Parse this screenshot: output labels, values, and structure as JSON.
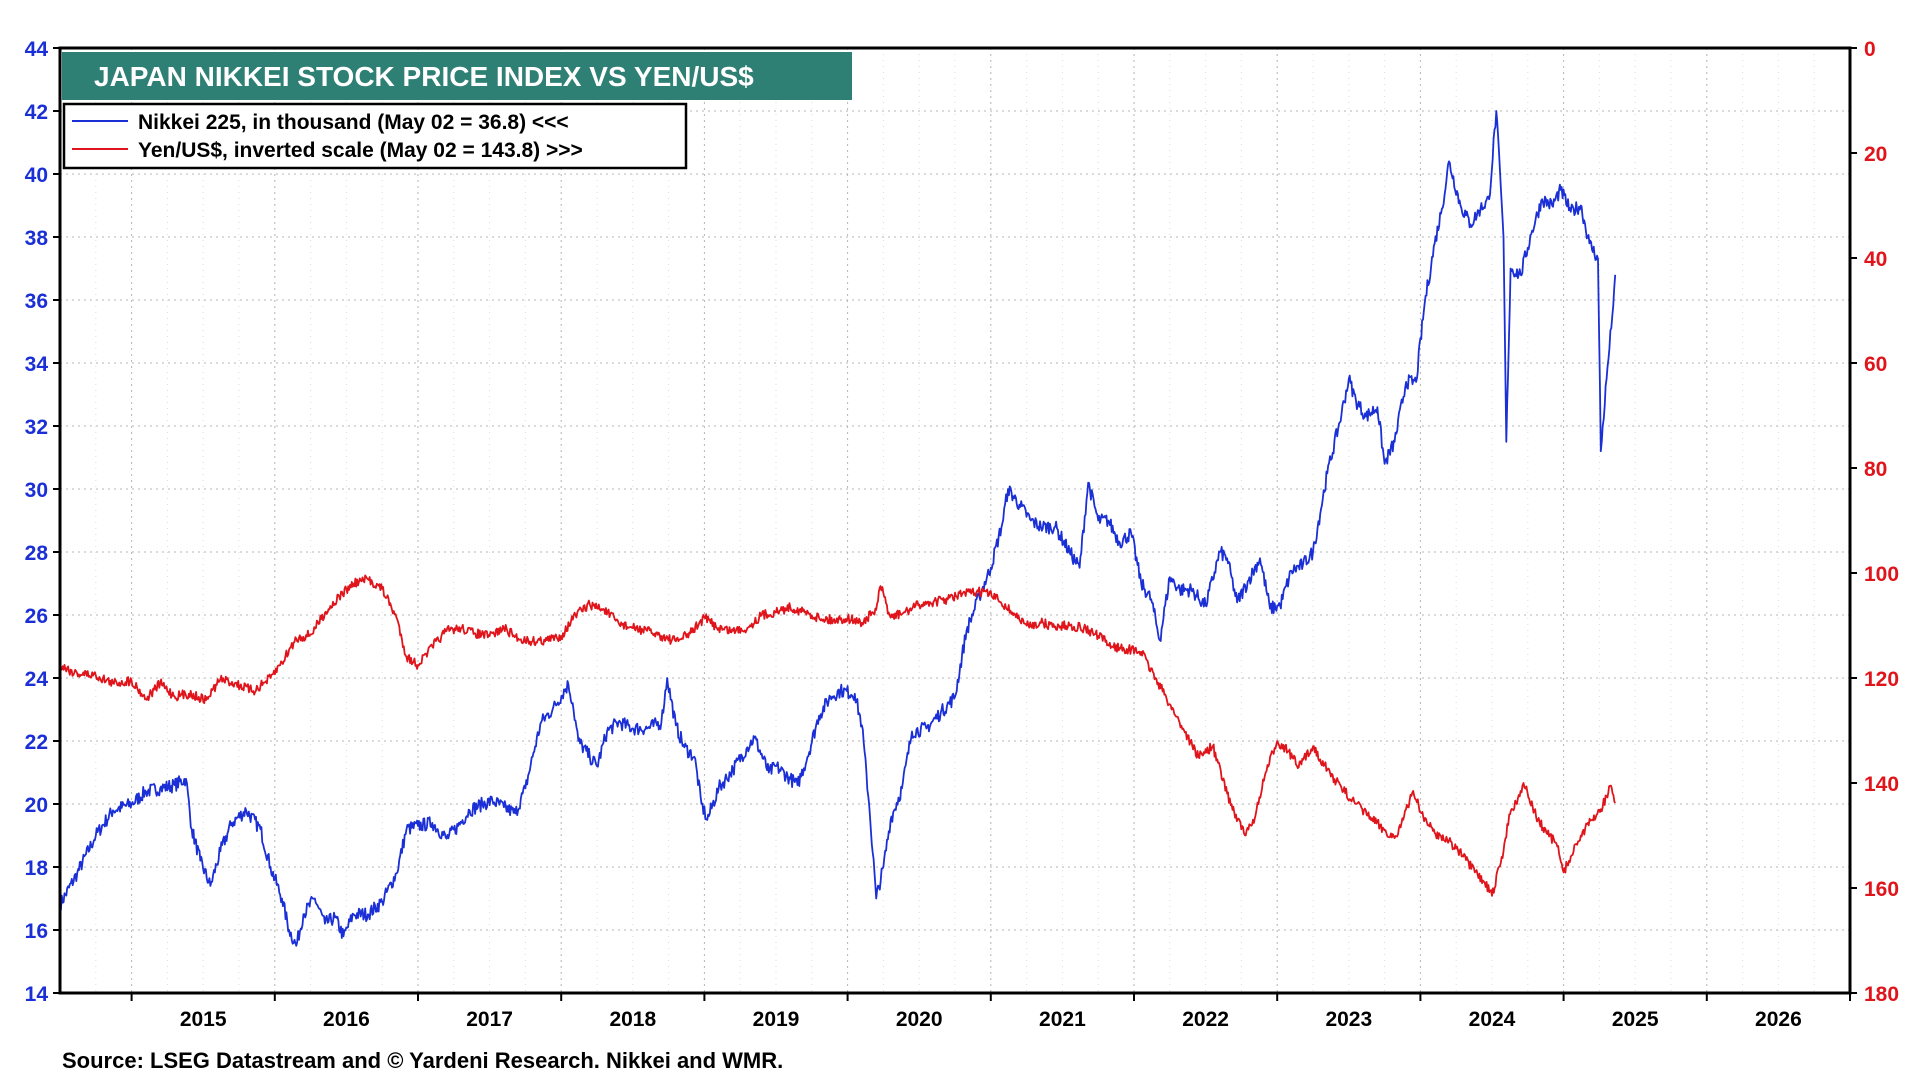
{
  "chart_data": {
    "type": "line",
    "title": "JAPAN NIKKEI STOCK PRICE INDEX VS YEN/US$",
    "source": "Source: LSEG Datastream and © Yardeni Research. Nikkei and WMR.",
    "xlim": [
      2014.5,
      2027.0
    ],
    "x_tick_labels": [
      "2015",
      "2016",
      "2017",
      "2018",
      "2019",
      "2020",
      "2021",
      "2022",
      "2023",
      "2024",
      "2025",
      "2026"
    ],
    "y_left": {
      "min": 14,
      "max": 44,
      "ticks": [
        "14",
        "16",
        "18",
        "20",
        "22",
        "24",
        "26",
        "28",
        "30",
        "32",
        "34",
        "36",
        "38",
        "40",
        "42",
        "44"
      ],
      "color": "#1a2fd6"
    },
    "y_right": {
      "min": 0,
      "max": 180,
      "inverted": true,
      "ticks": [
        "0",
        "20",
        "40",
        "60",
        "80",
        "100",
        "120",
        "140",
        "160",
        "180"
      ],
      "color": "#e0141b"
    },
    "grid": true,
    "legend_position": "top-left",
    "series": [
      {
        "name": "Nikkei 225, in thousand (May 02 = 36.8) <<<",
        "axis": "left",
        "color": "#1a2fd6",
        "points": [
          [
            2014.5,
            16.8
          ],
          [
            2014.62,
            17.8
          ],
          [
            2014.75,
            19.0
          ],
          [
            2014.87,
            19.8
          ],
          [
            2015.0,
            20.0
          ],
          [
            2015.1,
            20.4
          ],
          [
            2015.2,
            20.5
          ],
          [
            2015.3,
            20.6
          ],
          [
            2015.38,
            20.8
          ],
          [
            2015.42,
            19.2
          ],
          [
            2015.48,
            18.2
          ],
          [
            2015.55,
            17.4
          ],
          [
            2015.62,
            18.5
          ],
          [
            2015.7,
            19.4
          ],
          [
            2015.8,
            19.8
          ],
          [
            2015.9,
            19.2
          ],
          [
            2015.97,
            18.0
          ],
          [
            2016.05,
            17.0
          ],
          [
            2016.1,
            16.0
          ],
          [
            2016.15,
            15.5
          ],
          [
            2016.2,
            16.5
          ],
          [
            2016.28,
            17.0
          ],
          [
            2016.35,
            16.2
          ],
          [
            2016.42,
            16.4
          ],
          [
            2016.48,
            15.8
          ],
          [
            2016.55,
            16.5
          ],
          [
            2016.65,
            16.5
          ],
          [
            2016.75,
            16.9
          ],
          [
            2016.85,
            17.8
          ],
          [
            2016.92,
            19.2
          ],
          [
            2017.0,
            19.3
          ],
          [
            2017.1,
            19.4
          ],
          [
            2017.2,
            18.9
          ],
          [
            2017.28,
            19.3
          ],
          [
            2017.36,
            19.8
          ],
          [
            2017.45,
            20.0
          ],
          [
            2017.52,
            20.1
          ],
          [
            2017.6,
            19.9
          ],
          [
            2017.68,
            19.7
          ],
          [
            2017.75,
            20.5
          ],
          [
            2017.8,
            21.5
          ],
          [
            2017.86,
            22.6
          ],
          [
            2017.94,
            23.0
          ],
          [
            2018.05,
            23.8
          ],
          [
            2018.08,
            23.2
          ],
          [
            2018.12,
            22.0
          ],
          [
            2018.2,
            21.5
          ],
          [
            2018.25,
            21.2
          ],
          [
            2018.32,
            22.3
          ],
          [
            2018.4,
            22.6
          ],
          [
            2018.5,
            22.4
          ],
          [
            2018.6,
            22.4
          ],
          [
            2018.7,
            22.6
          ],
          [
            2018.74,
            24.0
          ],
          [
            2018.8,
            22.5
          ],
          [
            2018.86,
            21.8
          ],
          [
            2018.93,
            21.5
          ],
          [
            2018.98,
            20.0
          ],
          [
            2019.02,
            19.5
          ],
          [
            2019.1,
            20.5
          ],
          [
            2019.2,
            21.1
          ],
          [
            2019.3,
            21.8
          ],
          [
            2019.35,
            22.1
          ],
          [
            2019.45,
            21.0
          ],
          [
            2019.5,
            21.2
          ],
          [
            2019.6,
            20.8
          ],
          [
            2019.65,
            20.6
          ],
          [
            2019.72,
            21.5
          ],
          [
            2019.8,
            22.8
          ],
          [
            2019.88,
            23.4
          ],
          [
            2019.95,
            23.6
          ],
          [
            2020.05,
            23.5
          ],
          [
            2020.1,
            22.5
          ],
          [
            2020.15,
            20.0
          ],
          [
            2020.2,
            17.0
          ],
          [
            2020.25,
            18.0
          ],
          [
            2020.3,
            19.5
          ],
          [
            2020.38,
            20.5
          ],
          [
            2020.45,
            22.3
          ],
          [
            2020.55,
            22.4
          ],
          [
            2020.65,
            22.9
          ],
          [
            2020.75,
            23.4
          ],
          [
            2020.83,
            25.5
          ],
          [
            2020.92,
            26.6
          ],
          [
            2021.0,
            27.5
          ],
          [
            2021.08,
            28.9
          ],
          [
            2021.12,
            30.0
          ],
          [
            2021.2,
            29.5
          ],
          [
            2021.28,
            29.0
          ],
          [
            2021.35,
            28.8
          ],
          [
            2021.45,
            28.8
          ],
          [
            2021.55,
            28.0
          ],
          [
            2021.62,
            27.5
          ],
          [
            2021.68,
            30.2
          ],
          [
            2021.75,
            29.0
          ],
          [
            2021.82,
            29.0
          ],
          [
            2021.9,
            28.3
          ],
          [
            2021.98,
            28.6
          ],
          [
            2022.05,
            27.0
          ],
          [
            2022.12,
            26.5
          ],
          [
            2022.18,
            25.2
          ],
          [
            2022.25,
            27.2
          ],
          [
            2022.32,
            26.8
          ],
          [
            2022.4,
            26.8
          ],
          [
            2022.5,
            26.3
          ],
          [
            2022.6,
            28.0
          ],
          [
            2022.65,
            27.8
          ],
          [
            2022.72,
            26.4
          ],
          [
            2022.8,
            27.1
          ],
          [
            2022.88,
            27.8
          ],
          [
            2022.95,
            26.2
          ],
          [
            2023.02,
            26.3
          ],
          [
            2023.1,
            27.4
          ],
          [
            2023.18,
            27.6
          ],
          [
            2023.25,
            28.0
          ],
          [
            2023.35,
            30.5
          ],
          [
            2023.45,
            32.4
          ],
          [
            2023.5,
            33.5
          ],
          [
            2023.55,
            32.8
          ],
          [
            2023.62,
            32.3
          ],
          [
            2023.7,
            32.6
          ],
          [
            2023.75,
            30.8
          ],
          [
            2023.82,
            31.5
          ],
          [
            2023.9,
            33.4
          ],
          [
            2023.97,
            33.4
          ],
          [
            2024.03,
            35.9
          ],
          [
            2024.1,
            37.8
          ],
          [
            2024.15,
            38.9
          ],
          [
            2024.2,
            40.4
          ],
          [
            2024.28,
            39.0
          ],
          [
            2024.35,
            38.4
          ],
          [
            2024.42,
            38.9
          ],
          [
            2024.48,
            39.2
          ],
          [
            2024.53,
            42.0
          ],
          [
            2024.58,
            38.0
          ],
          [
            2024.6,
            31.5
          ],
          [
            2024.63,
            37.0
          ],
          [
            2024.7,
            36.8
          ],
          [
            2024.78,
            38.2
          ],
          [
            2024.85,
            39.2
          ],
          [
            2024.92,
            39.0
          ],
          [
            2024.98,
            39.5
          ],
          [
            2025.05,
            38.8
          ],
          [
            2025.12,
            39.0
          ],
          [
            2025.18,
            37.8
          ],
          [
            2025.24,
            37.3
          ],
          [
            2025.26,
            31.2
          ],
          [
            2025.3,
            33.5
          ],
          [
            2025.34,
            35.5
          ],
          [
            2025.36,
            36.8
          ]
        ]
      },
      {
        "name": "Yen/US$, inverted scale (May 02 = 143.8) >>>",
        "axis": "right",
        "color": "#e0141b",
        "points": [
          [
            2014.5,
            117.5
          ],
          [
            2014.6,
            119.0
          ],
          [
            2014.75,
            119.5
          ],
          [
            2014.87,
            121.0
          ],
          [
            2015.0,
            120.5
          ],
          [
            2015.1,
            124.0
          ],
          [
            2015.2,
            121.0
          ],
          [
            2015.3,
            123.5
          ],
          [
            2015.4,
            123.0
          ],
          [
            2015.52,
            124.2
          ],
          [
            2015.62,
            120.2
          ],
          [
            2015.72,
            121.0
          ],
          [
            2015.85,
            122.5
          ],
          [
            2015.97,
            120.0
          ],
          [
            2016.05,
            117.0
          ],
          [
            2016.15,
            112.5
          ],
          [
            2016.25,
            111.7
          ],
          [
            2016.35,
            107.6
          ],
          [
            2016.45,
            104.5
          ],
          [
            2016.55,
            102.0
          ],
          [
            2016.65,
            101.2
          ],
          [
            2016.75,
            103.0
          ],
          [
            2016.85,
            108.5
          ],
          [
            2016.92,
            116.0
          ],
          [
            2017.0,
            117.5
          ],
          [
            2017.1,
            114.0
          ],
          [
            2017.2,
            111.0
          ],
          [
            2017.3,
            110.5
          ],
          [
            2017.4,
            111.5
          ],
          [
            2017.5,
            112.0
          ],
          [
            2017.6,
            110.5
          ],
          [
            2017.7,
            112.5
          ],
          [
            2017.8,
            113.0
          ],
          [
            2017.9,
            112.8
          ],
          [
            2018.0,
            112.0
          ],
          [
            2018.1,
            108.0
          ],
          [
            2018.2,
            106.0
          ],
          [
            2018.3,
            107.0
          ],
          [
            2018.4,
            109.5
          ],
          [
            2018.5,
            110.5
          ],
          [
            2018.6,
            111.0
          ],
          [
            2018.7,
            112.0
          ],
          [
            2018.8,
            113.0
          ],
          [
            2018.9,
            111.5
          ],
          [
            2019.0,
            108.5
          ],
          [
            2019.1,
            110.5
          ],
          [
            2019.2,
            111.0
          ],
          [
            2019.3,
            110.5
          ],
          [
            2019.4,
            108.0
          ],
          [
            2019.5,
            107.5
          ],
          [
            2019.6,
            106.5
          ],
          [
            2019.7,
            107.5
          ],
          [
            2019.8,
            108.5
          ],
          [
            2019.9,
            109.0
          ],
          [
            2020.0,
            108.6
          ],
          [
            2020.1,
            109.5
          ],
          [
            2020.2,
            107.0
          ],
          [
            2020.23,
            102.5
          ],
          [
            2020.3,
            108.5
          ],
          [
            2020.4,
            107.5
          ],
          [
            2020.5,
            106.0
          ],
          [
            2020.6,
            105.5
          ],
          [
            2020.7,
            105.0
          ],
          [
            2020.8,
            104.0
          ],
          [
            2020.95,
            103.5
          ],
          [
            2021.05,
            105.0
          ],
          [
            2021.15,
            107.5
          ],
          [
            2021.25,
            110.0
          ],
          [
            2021.35,
            109.5
          ],
          [
            2021.45,
            110.2
          ],
          [
            2021.55,
            110.0
          ],
          [
            2021.65,
            110.5
          ],
          [
            2021.75,
            112.0
          ],
          [
            2021.85,
            114.0
          ],
          [
            2021.95,
            114.5
          ],
          [
            2022.05,
            115.0
          ],
          [
            2022.15,
            120.0
          ],
          [
            2022.25,
            125.0
          ],
          [
            2022.35,
            130.0
          ],
          [
            2022.45,
            135.0
          ],
          [
            2022.55,
            133.0
          ],
          [
            2022.65,
            142.0
          ],
          [
            2022.7,
            145.5
          ],
          [
            2022.78,
            150.0
          ],
          [
            2022.85,
            146.0
          ],
          [
            2022.92,
            138.0
          ],
          [
            2023.0,
            132.0
          ],
          [
            2023.08,
            134.0
          ],
          [
            2023.15,
            137.0
          ],
          [
            2023.25,
            133.0
          ],
          [
            2023.35,
            137.5
          ],
          [
            2023.45,
            141.0
          ],
          [
            2023.55,
            144.0
          ],
          [
            2023.65,
            146.5
          ],
          [
            2023.75,
            149.0
          ],
          [
            2023.82,
            150.5
          ],
          [
            2023.88,
            147.0
          ],
          [
            2023.95,
            141.5
          ],
          [
            2024.02,
            146.5
          ],
          [
            2024.1,
            149.5
          ],
          [
            2024.2,
            151.0
          ],
          [
            2024.3,
            154.0
          ],
          [
            2024.38,
            157.0
          ],
          [
            2024.45,
            159.0
          ],
          [
            2024.5,
            161.5
          ],
          [
            2024.58,
            153.0
          ],
          [
            2024.62,
            146.0
          ],
          [
            2024.68,
            143.0
          ],
          [
            2024.72,
            140.0
          ],
          [
            2024.76,
            143.0
          ],
          [
            2024.82,
            147.0
          ],
          [
            2024.88,
            149.5
          ],
          [
            2024.95,
            151.5
          ],
          [
            2025.0,
            157.0
          ],
          [
            2025.05,
            154.0
          ],
          [
            2025.12,
            150.0
          ],
          [
            2025.2,
            147.0
          ],
          [
            2025.26,
            145.0
          ],
          [
            2025.3,
            142.5
          ],
          [
            2025.33,
            140.5
          ],
          [
            2025.36,
            143.8
          ]
        ]
      }
    ]
  }
}
